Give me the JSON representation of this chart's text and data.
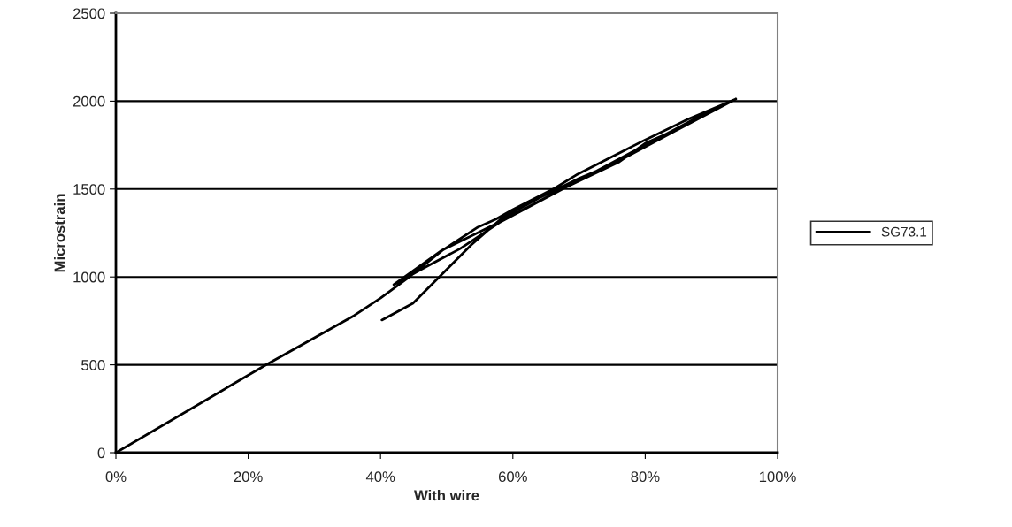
{
  "chart_data": {
    "type": "line",
    "xlabel": "With wire",
    "ylabel": "Microstrain",
    "series": [
      {
        "name": "SG73.1",
        "color": "#000000",
        "x": [
          0,
          22.6,
          36,
          40,
          44,
          49.3,
          54.7,
          57.4,
          60,
          66.3,
          69.8,
          76.1,
          80,
          86.4,
          93.7,
          86,
          80,
          76.1,
          67.1,
          58.3,
          49.3,
          42,
          46,
          52,
          58,
          65,
          72,
          80,
          87,
          93.7,
          85,
          75,
          70,
          64,
          58.3,
          53.7,
          48.9,
          44.9,
          40.2
        ],
        "values": [
          0,
          498,
          780,
          880,
          990,
          1150,
          1283,
          1328,
          1383,
          1504,
          1585,
          1705,
          1780,
          1896,
          2012,
          1860,
          1760,
          1655,
          1494,
          1318,
          1152,
          956,
          1040,
          1160,
          1310,
          1450,
          1590,
          1750,
          1890,
          2012,
          1840,
          1640,
          1560,
          1450,
          1333,
          1182,
          1001,
          850,
          755
        ]
      }
    ],
    "xlim": [
      0,
      100
    ],
    "xticks": [
      {
        "value": 0,
        "label": "0%"
      },
      {
        "value": 20,
        "label": "20%"
      },
      {
        "value": 40,
        "label": "40%"
      },
      {
        "value": 60,
        "label": "60%"
      },
      {
        "value": 80,
        "label": "80%"
      },
      {
        "value": 100,
        "label": "100%"
      }
    ],
    "ylim": [
      0,
      2500
    ],
    "yticks": [
      0,
      500,
      1000,
      1500,
      2000,
      2500
    ],
    "grid": "y",
    "legend": "right",
    "marker": "none",
    "line_style": "solid"
  }
}
